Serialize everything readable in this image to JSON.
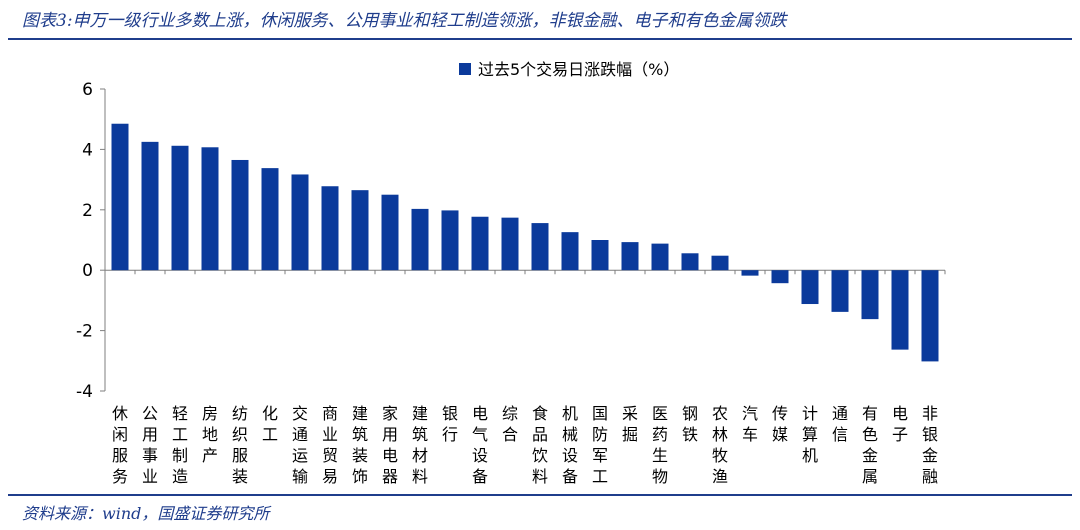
{
  "figure": {
    "title": "图表3:申万一级行业多数上涨，休闲服务、公用事业和轻工制造领涨，非银金融、电子和有色金属领跌",
    "source": "资料来源：wind，国盛证券研究所"
  },
  "colors": {
    "bar": "#0b3a9b",
    "rule": "#1f3d8c"
  },
  "chart_data": {
    "type": "bar",
    "categories": [
      "休闲服务",
      "公用事业",
      "轻工制造",
      "房地产",
      "纺织服装",
      "化工",
      "交通运输",
      "商业贸易",
      "建筑装饰",
      "家用电器",
      "建筑材料",
      "银行",
      "电气设备",
      "综合",
      "食品饮料",
      "机械设备",
      "国防军工",
      "采掘",
      "医药生物",
      "钢铁",
      "农林牧渔",
      "汽车",
      "传媒",
      "计算机",
      "通信",
      "有色金属",
      "电子",
      "非银金融"
    ],
    "series": [
      {
        "name": "过去5个交易日涨跌幅（%）",
        "values": [
          4.85,
          4.25,
          4.12,
          4.07,
          3.65,
          3.38,
          3.17,
          2.78,
          2.65,
          2.5,
          2.03,
          1.98,
          1.77,
          1.74,
          1.56,
          1.26,
          1.0,
          0.93,
          0.88,
          0.56,
          0.48,
          -0.18,
          -0.43,
          -1.12,
          -1.38,
          -1.62,
          -2.63,
          -3.02
        ]
      }
    ],
    "xlabel": "",
    "ylabel": "",
    "ylim": [
      -4,
      6
    ],
    "yticks": [
      -4,
      -2,
      0,
      2,
      4,
      6
    ],
    "grid": false,
    "legend": "top-center"
  }
}
